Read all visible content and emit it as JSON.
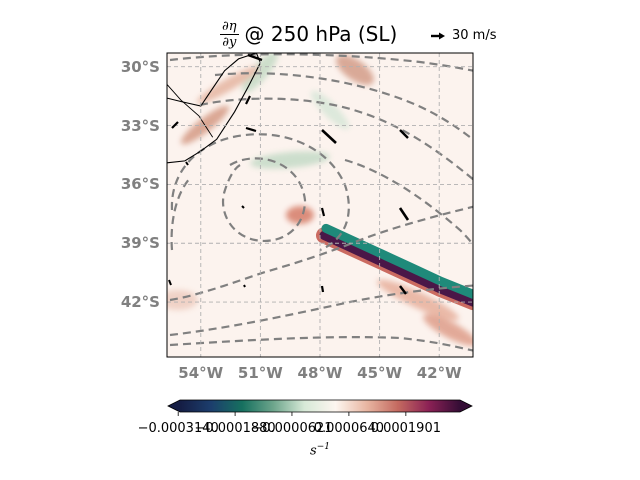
{
  "title": {
    "numerator": "∂η",
    "denominator": "∂y",
    "text": "@ 250 hPa (SL)"
  },
  "quiver_key": {
    "label": "30 m/s",
    "icon": "arrow-right-icon"
  },
  "map": {
    "projection": "PlateCarree",
    "lon_range": [
      -55.7,
      -40.3
    ],
    "lat_range": [
      -44.8,
      -29.3
    ],
    "lat_ticks": [
      {
        "value": -30,
        "label": "30°S"
      },
      {
        "value": -33,
        "label": "33°S"
      },
      {
        "value": -36,
        "label": "36°S"
      },
      {
        "value": -39,
        "label": "39°S"
      },
      {
        "value": -42,
        "label": "42°S"
      }
    ],
    "lon_ticks": [
      {
        "value": -54,
        "label": "54°W"
      },
      {
        "value": -51,
        "label": "51°W"
      },
      {
        "value": -48,
        "label": "48°W"
      },
      {
        "value": -45,
        "label": "45°W"
      },
      {
        "value": -42,
        "label": "42°W"
      }
    ],
    "gridlines": true,
    "gridline_style": "dashed",
    "contour_color": "#808080",
    "contour_style": "dashed",
    "coastline_color": "#000000",
    "field_description": "meridional gradient of absolute vorticity",
    "strong_band": {
      "description": "positive (purple) / negative (teal) dipole band",
      "points": [
        [
          -47.8,
          -38.6
        ],
        [
          -46.5,
          -39.2
        ],
        [
          -45.0,
          -39.9
        ],
        [
          -43.5,
          -40.6
        ],
        [
          -42.0,
          -41.3
        ],
        [
          -40.3,
          -42.0
        ]
      ]
    },
    "coastline": {
      "points": [
        [
          -55.7,
          -31.6
        ],
        [
          -54.9,
          -31.8
        ],
        [
          -54.0,
          -32.0
        ],
        [
          -53.4,
          -31.1
        ],
        [
          -52.8,
          -30.2
        ],
        [
          -52.1,
          -29.6
        ],
        [
          -51.2,
          -29.3
        ],
        [
          -51.0,
          -29.8
        ],
        [
          -51.6,
          -31.0
        ],
        [
          -52.3,
          -32.3
        ],
        [
          -53.2,
          -33.7
        ],
        [
          -54.0,
          -34.3
        ],
        [
          -54.8,
          -34.8
        ],
        [
          -55.7,
          -34.9
        ]
      ],
      "border": [
        [
          -55.7,
          -30.9
        ],
        [
          -55.0,
          -31.7
        ],
        [
          -54.1,
          -32.5
        ],
        [
          -53.4,
          -33.6
        ]
      ]
    }
  },
  "colorbar": {
    "colormap": "curl",
    "colors": [
      "#151d44",
      "#1c3e6d",
      "#16705f",
      "#6da58c",
      "#d7e9d7",
      "#fdf6f0",
      "#e8b6a2",
      "#c46a60",
      "#8b2155",
      "#340d35"
    ],
    "vmin": -0.00031,
    "vmax": 0.00031,
    "tick_labels": [
      "−0.0003140",
      "−0.0001880",
      "−0.0000621",
      "0.0000640",
      "0.0001901"
    ],
    "units_base": "s",
    "units_exp": "−1"
  }
}
